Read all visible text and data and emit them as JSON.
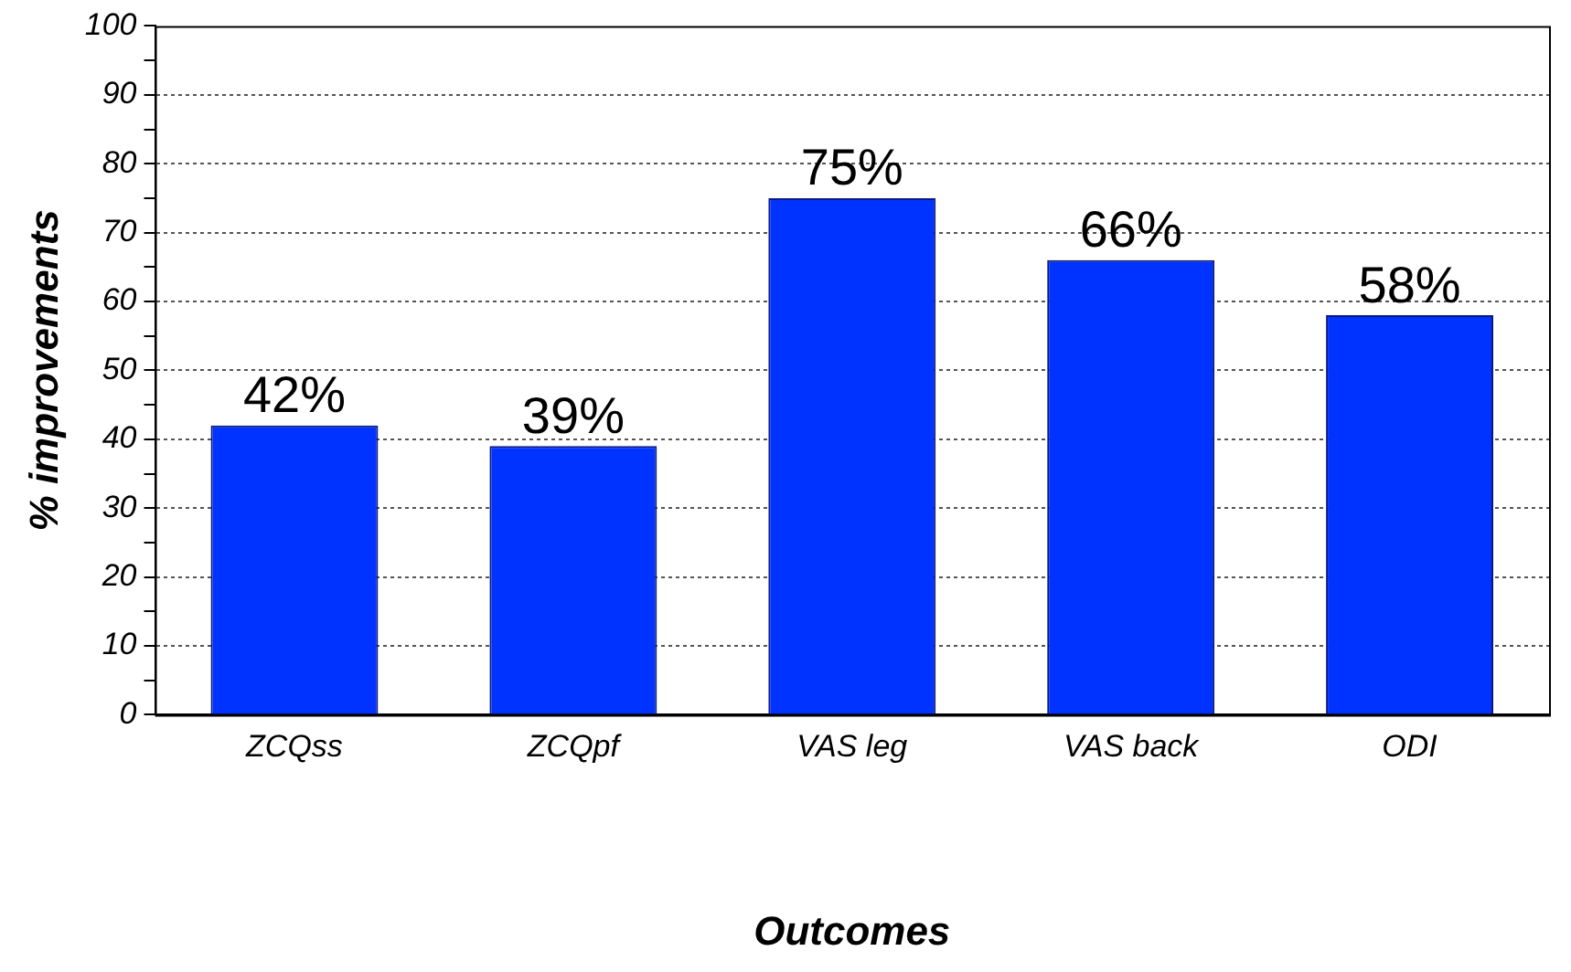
{
  "chart_data": {
    "type": "bar",
    "xlabel": "Outcomes",
    "ylabel": "% improvements",
    "categories": [
      "ZCQss",
      "ZCQpf",
      "VAS leg",
      "VAS back",
      "ODI"
    ],
    "values": [
      42,
      39,
      75,
      66,
      58
    ],
    "value_labels": [
      "42%",
      "39%",
      "75%",
      "66%",
      "58%"
    ],
    "color": "#0033ff",
    "ylim": [
      0,
      100
    ],
    "yticks": [
      0,
      {
        "value": 5,
        "label": null
      },
      10,
      {
        "value": 15,
        "label": null
      },
      20,
      {
        "value": 25,
        "label": null
      },
      30,
      {
        "value": 35,
        "label": null
      },
      40,
      {
        "value": 45,
        "label": null
      },
      50,
      {
        "value": 55,
        "label": null
      },
      60,
      {
        "value": 65,
        "label": null
      },
      70,
      {
        "value": 75,
        "label": null
      },
      80,
      {
        "value": 85,
        "label": null
      },
      90,
      {
        "value": 95,
        "label": null
      },
      100
    ],
    "grid": "y",
    "legend": false
  }
}
